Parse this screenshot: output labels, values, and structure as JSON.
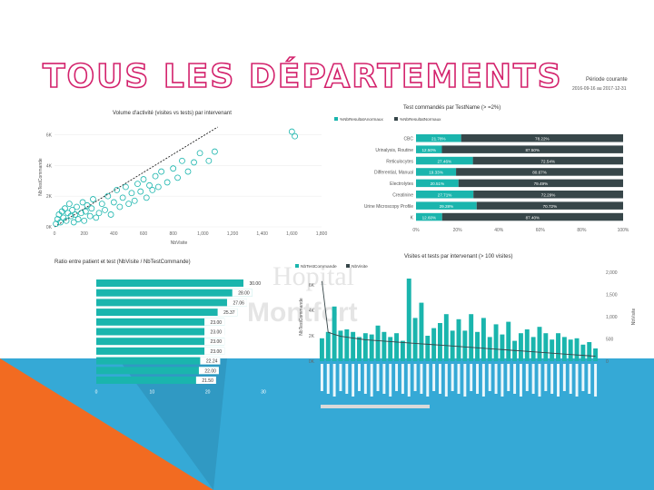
{
  "slide": {
    "title": "TOUS LES DÉPARTEMENTS",
    "period_label": "Période courante",
    "period_value": "2016-09-16 au 2017-12-31",
    "watermark_line1": "Hopital",
    "watermark_line2": "Montfort",
    "colors": {
      "teal": "#1ab5ad",
      "dark": "#374649",
      "orange": "#f26b21",
      "blue": "#35a9d6",
      "title": "#d3226c"
    }
  },
  "chart_data": [
    {
      "type": "scatter",
      "title": "Volume d'activité (visites vs tests) par intervenant",
      "xlabel": "NbVisite",
      "ylabel": "NbTestCommande",
      "xticks": [
        "0",
        "200",
        "400",
        "600",
        "800",
        "1,000",
        "1,200",
        "1,400",
        "1,600",
        "1,800"
      ],
      "yticks": [
        "0K",
        "2K",
        "4K",
        "6K"
      ],
      "xlim": [
        0,
        1800
      ],
      "ylim": [
        0,
        6500
      ],
      "trendline": true,
      "points": [
        [
          10,
          200
        ],
        [
          20,
          500
        ],
        [
          30,
          800
        ],
        [
          40,
          300
        ],
        [
          50,
          1000
        ],
        [
          60,
          600
        ],
        [
          70,
          1200
        ],
        [
          80,
          400
        ],
        [
          90,
          900
        ],
        [
          100,
          1500
        ],
        [
          110,
          700
        ],
        [
          120,
          1100
        ],
        [
          130,
          300
        ],
        [
          140,
          800
        ],
        [
          150,
          1300
        ],
        [
          160,
          500
        ],
        [
          180,
          900
        ],
        [
          190,
          1600
        ],
        [
          200,
          400
        ],
        [
          210,
          1000
        ],
        [
          220,
          1400
        ],
        [
          240,
          700
        ],
        [
          250,
          1200
        ],
        [
          260,
          1800
        ],
        [
          280,
          600
        ],
        [
          300,
          900
        ],
        [
          320,
          1500
        ],
        [
          340,
          1100
        ],
        [
          360,
          2000
        ],
        [
          380,
          800
        ],
        [
          400,
          1600
        ],
        [
          420,
          2400
        ],
        [
          440,
          1300
        ],
        [
          460,
          1900
        ],
        [
          480,
          2600
        ],
        [
          500,
          1500
        ],
        [
          520,
          2200
        ],
        [
          540,
          1700
        ],
        [
          560,
          2800
        ],
        [
          580,
          2300
        ],
        [
          600,
          3100
        ],
        [
          620,
          1900
        ],
        [
          640,
          2700
        ],
        [
          660,
          2400
        ],
        [
          680,
          3300
        ],
        [
          700,
          2600
        ],
        [
          720,
          3600
        ],
        [
          760,
          2900
        ],
        [
          800,
          3800
        ],
        [
          830,
          3200
        ],
        [
          860,
          4300
        ],
        [
          900,
          3600
        ],
        [
          940,
          4200
        ],
        [
          980,
          4800
        ],
        [
          1040,
          4300
        ],
        [
          1080,
          4900
        ],
        [
          1600,
          6200
        ],
        [
          1620,
          5900
        ]
      ]
    },
    {
      "type": "bar",
      "stacked": true,
      "title": "Test commandés par TestName (> =2%)",
      "legend": [
        "%NbResultatAnormaux",
        "%NbResultatNormaux"
      ],
      "legend_position": "top-left",
      "categories": [
        "CBC",
        "Urinalysis, Routine",
        "Reticulocytes",
        "Differential, Manual",
        "Electrolytes",
        "Creatinine",
        "Urine Microscopy Profile",
        "K"
      ],
      "series": [
        {
          "name": "%NbResultatAnormaux",
          "values": [
            21.78,
            12.5,
            27.46,
            19.33,
            20.51,
            27.71,
            29.28,
            12.6
          ],
          "labels": [
            "21.78%",
            "12.50%",
            "27.46%",
            "19.33%",
            "20.51%",
            "27.71%",
            "29.28%",
            "12.60%"
          ]
        },
        {
          "name": "%NbResultatNormaux",
          "values": [
            78.22,
            87.5,
            72.54,
            80.67,
            79.49,
            72.29,
            70.72,
            87.4
          ],
          "labels": [
            "78.22%",
            "87.50%",
            "72.54%",
            "80.67%",
            "79.49%",
            "72.29%",
            "70.72%",
            "87.40%"
          ]
        }
      ],
      "xticks": [
        "0%",
        "20%",
        "40%",
        "60%",
        "80%",
        "100%"
      ],
      "xlim": [
        0,
        100
      ]
    },
    {
      "type": "bar",
      "orientation": "horizontal",
      "title": "Ratio entre patient et test (NbVisite / NbTestCommande)",
      "categories": [
        "",
        "",
        "",
        "",
        "",
        "",
        "",
        "",
        "",
        "",
        ""
      ],
      "values": [
        30.0,
        28.0,
        27.06,
        25.37,
        23.0,
        23.0,
        23.0,
        23.0,
        22.24,
        22.0,
        21.5
      ],
      "labels": [
        "30.00",
        "28.00",
        "27.06",
        "25.37",
        "23.00",
        "23.00",
        "23.00",
        "23.00",
        "22.24",
        "22.00",
        "21.50"
      ],
      "xticks": [
        "0",
        "10",
        "20",
        "30"
      ],
      "xlim": [
        0,
        30
      ]
    },
    {
      "type": "bar",
      "combo": "bar-line",
      "title": "Visites et tests par intervenant (> 100 visites)",
      "legend": [
        "NbTestCommande",
        "NbVisite"
      ],
      "ylabel": "NbTestCommande",
      "y2label": "NbVisite",
      "yticks": [
        "0K",
        "2K",
        "4K",
        "6K"
      ],
      "y2ticks": [
        "0",
        "500",
        "1,000",
        "1,500",
        "2,000"
      ],
      "ylim": [
        0,
        7000
      ],
      "y2lim": [
        0,
        2000
      ],
      "bars": [
        1800,
        2300,
        4300,
        2400,
        2500,
        2300,
        1900,
        2200,
        2100,
        2800,
        2300,
        1900,
        2200,
        1600,
        6500,
        3400,
        4600,
        2000,
        2600,
        3000,
        3700,
        2400,
        3300,
        2400,
        3700,
        2300,
        3400,
        1900,
        2900,
        2100,
        3100,
        1600,
        2200,
        2500,
        1900,
        2700,
        2200,
        1700,
        2200,
        1900,
        1700,
        1800,
        1300,
        1500,
        1000
      ],
      "line": [
        1800,
        650,
        600,
        560,
        540,
        520,
        500,
        480,
        470,
        460,
        450,
        440,
        430,
        420,
        410,
        400,
        390,
        380,
        370,
        360,
        350,
        340,
        330,
        320,
        310,
        300,
        290,
        280,
        270,
        260,
        250,
        240,
        230,
        220,
        210,
        200,
        190,
        180,
        170,
        160,
        150,
        140,
        130,
        120,
        110
      ]
    }
  ]
}
